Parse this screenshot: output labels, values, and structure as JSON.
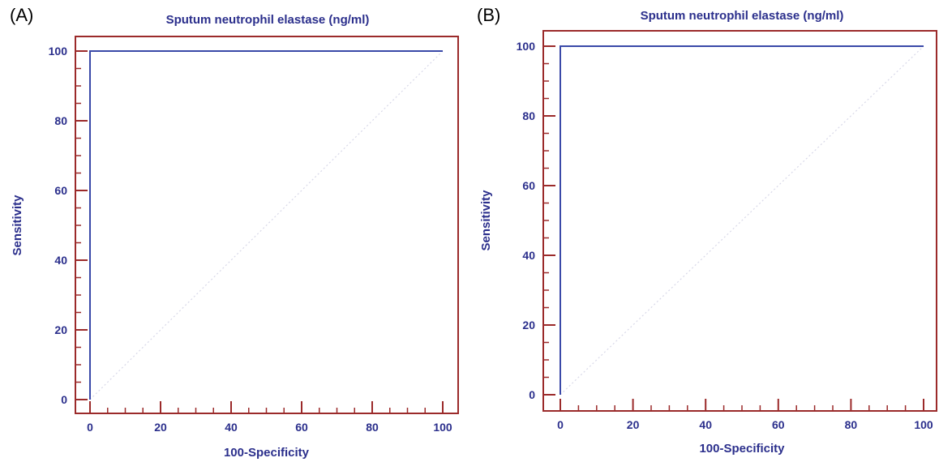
{
  "panels": [
    {
      "label": "(A)"
    },
    {
      "label": "(B)"
    }
  ],
  "colors": {
    "frame": "#9b2a2a",
    "curve": "#3a49a8",
    "text": "#2b2f8c",
    "diagonal": "#d8d8e8"
  },
  "chart_data": [
    {
      "type": "line",
      "title": "Sputum neutrophil elastase (ng/ml)",
      "xlabel": "100-Specificity",
      "ylabel": "Sensitivity",
      "xlim": [
        0,
        100
      ],
      "ylim": [
        0,
        100
      ],
      "xticks": [
        0,
        20,
        40,
        60,
        80,
        100
      ],
      "yticks": [
        0,
        20,
        40,
        60,
        80,
        100
      ],
      "series": [
        {
          "x": [
            0,
            0,
            100
          ],
          "y": [
            0,
            100,
            100
          ]
        }
      ],
      "reference_line": {
        "x": [
          0,
          100
        ],
        "y": [
          0,
          100
        ]
      },
      "grid": false
    },
    {
      "type": "line",
      "title": "Sputum neutrophil elastase (ng/ml)",
      "xlabel": "100-Specificity",
      "ylabel": "Sensitivity",
      "xlim": [
        0,
        100
      ],
      "ylim": [
        0,
        100
      ],
      "xticks": [
        0,
        20,
        40,
        60,
        80,
        100
      ],
      "yticks": [
        0,
        20,
        40,
        60,
        80,
        100
      ],
      "series": [
        {
          "x": [
            0,
            0,
            100
          ],
          "y": [
            0,
            100,
            100
          ]
        }
      ],
      "reference_line": {
        "x": [
          0,
          100
        ],
        "y": [
          0,
          100
        ]
      },
      "grid": false
    }
  ]
}
